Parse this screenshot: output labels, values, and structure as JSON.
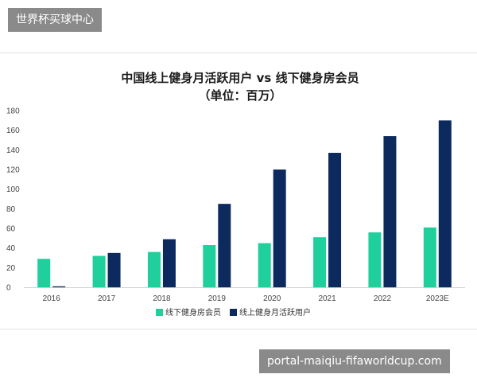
{
  "watermark_top": "世界杯买球中心",
  "watermark_bottom": "portal-maiqiu-fifaworldcup.com",
  "chart_data": {
    "type": "bar",
    "title": "中国线上健身月活跃用户 vs 线下健身房会员",
    "subtitle": "（单位：百万）",
    "categories": [
      "2016",
      "2017",
      "2018",
      "2019",
      "2020",
      "2021",
      "2022",
      "2023E"
    ],
    "series": [
      {
        "name": "线下健身房会员",
        "color": "#1fcf9c",
        "values": [
          29,
          32,
          36,
          43,
          45,
          51,
          56,
          61
        ]
      },
      {
        "name": "线上健身月活跃用户",
        "color": "#0d2a5e",
        "values": [
          1,
          35,
          49,
          85,
          120,
          137,
          154,
          170
        ]
      }
    ],
    "ylim": [
      0,
      180
    ],
    "yticks": [
      0,
      20,
      40,
      60,
      80,
      100,
      120,
      140,
      160,
      180
    ],
    "grid": false,
    "legend_position": "bottom-center",
    "xlabel": "",
    "ylabel": ""
  }
}
